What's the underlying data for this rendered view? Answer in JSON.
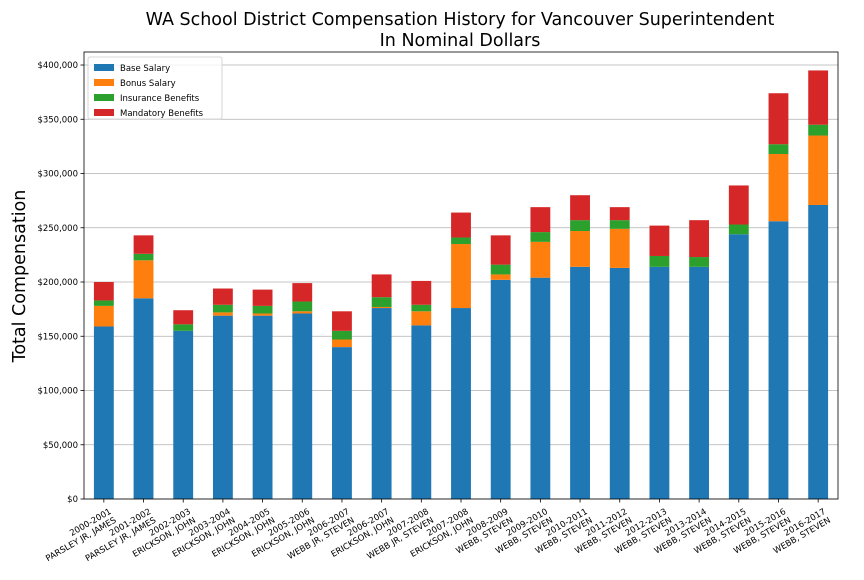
{
  "chart_data": {
    "type": "bar",
    "stacked": true,
    "title": "WA School District Compensation History for Vancouver Superintendent",
    "subtitle": "In Nominal Dollars",
    "ylabel": "Total Compensation",
    "xlabel": "",
    "ylim": [
      0,
      412000
    ],
    "yticks": [
      0,
      50000,
      100000,
      150000,
      200000,
      250000,
      300000,
      350000,
      400000
    ],
    "ytick_labels": [
      "$0",
      "$50,000",
      "$100,000",
      "$150,000",
      "$200,000",
      "$250,000",
      "$300,000",
      "$350,000",
      "$400,000"
    ],
    "grid": "horizontal",
    "legend": "top-left",
    "categories": [
      "2000-2001\nPARSLEY JR, JAMES",
      "2001-2002\nPARSLEY JR, JAMES",
      "2002-2003\nERICKSON, JOHN",
      "2003-2004\nERICKSON, JOHN",
      "2004-2005\nERICKSON, JOHN",
      "2005-2006\nERICKSON, JOHN",
      "2006-2007\nWEBB JR, STEVEN",
      "2006-2007\nERICKSON, JOHN",
      "2007-2008\nWEBB JR, STEVEN",
      "2007-2008\nERICKSON, JOHN",
      "2008-2009\nWEBB, STEVEN",
      "2009-2010\nWEBB, STEVEN",
      "2010-2011\nWEBB, STEVEN",
      "2011-2012\nWEBB, STEVEN",
      "2012-2013\nWEBB, STEVEN",
      "2013-2014\nWEBB, STEVEN",
      "2014-2015\nWEBB, STEVEN",
      "2015-2016\nWEBB, STEVEN",
      "2016-2017\nWEBB, STEVEN"
    ],
    "series": [
      {
        "name": "Base Salary",
        "color": "#1f77b4",
        "values": [
          159000,
          185000,
          155000,
          169000,
          169000,
          171000,
          140000,
          176000,
          160000,
          176000,
          202000,
          204000,
          214000,
          213000,
          214000,
          214000,
          244000,
          256000,
          271000
        ]
      },
      {
        "name": "Bonus Salary",
        "color": "#ff7f0e",
        "values": [
          19000,
          35000,
          0,
          3000,
          2000,
          2000,
          7000,
          1000,
          13000,
          59000,
          5000,
          33000,
          33000,
          36000,
          0,
          0,
          0,
          62000,
          64000
        ]
      },
      {
        "name": "Insurance Benefits",
        "color": "#2ca02c",
        "values": [
          5000,
          6000,
          6000,
          7000,
          7000,
          9000,
          8000,
          9000,
          6000,
          6000,
          9000,
          9000,
          10000,
          8000,
          10000,
          9000,
          9000,
          9000,
          10000
        ]
      },
      {
        "name": "Mandatory Benefits",
        "color": "#d62728",
        "values": [
          17000,
          17000,
          13000,
          15000,
          15000,
          17000,
          18000,
          21000,
          22000,
          23000,
          27000,
          23000,
          23000,
          12000,
          28000,
          34000,
          36000,
          47000,
          50000
        ]
      }
    ]
  }
}
